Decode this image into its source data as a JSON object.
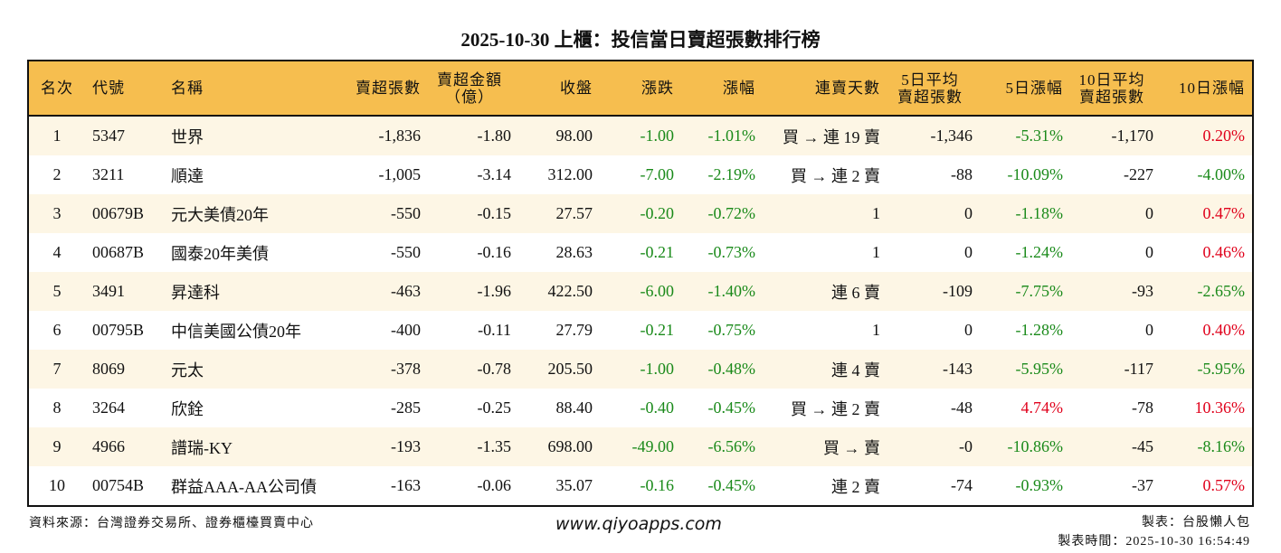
{
  "title": "2025-10-30 上櫃：投信當日賣超張數排行榜",
  "headers": [
    "名次",
    "代號",
    "名稱",
    "賣超張數",
    "賣超金額\n（億）",
    "收盤",
    "漲跌",
    "漲幅",
    "連賣天數",
    "5日平均\n賣超張數",
    "5日漲幅",
    "10日平均\n賣超張數",
    "10日漲幅"
  ],
  "colors": {
    "header_bg": "#F6BE4F",
    "row_alt_bg": "#FDF6E5",
    "down": "#1a8a1a",
    "up": "#e0001b"
  },
  "rows": [
    {
      "rank": "1",
      "code": "5347",
      "name": "世界",
      "shares": "-1,836",
      "amount": "-1.80",
      "close": "98.00",
      "chg": "-1.00",
      "pct": "-1.01%",
      "streak": "買 → 連 19 賣",
      "avg5": "-1,346",
      "pct5": "-5.31%",
      "avg10": "-1,170",
      "pct10": "0.20%"
    },
    {
      "rank": "2",
      "code": "3211",
      "name": "順達",
      "shares": "-1,005",
      "amount": "-3.14",
      "close": "312.00",
      "chg": "-7.00",
      "pct": "-2.19%",
      "streak": "買 → 連 2 賣",
      "avg5": "-88",
      "pct5": "-10.09%",
      "avg10": "-227",
      "pct10": "-4.00%"
    },
    {
      "rank": "3",
      "code": "00679B",
      "name": "元大美債20年",
      "shares": "-550",
      "amount": "-0.15",
      "close": "27.57",
      "chg": "-0.20",
      "pct": "-0.72%",
      "streak": "1",
      "avg5": "0",
      "pct5": "-1.18%",
      "avg10": "0",
      "pct10": "0.47%"
    },
    {
      "rank": "4",
      "code": "00687B",
      "name": "國泰20年美債",
      "shares": "-550",
      "amount": "-0.16",
      "close": "28.63",
      "chg": "-0.21",
      "pct": "-0.73%",
      "streak": "1",
      "avg5": "0",
      "pct5": "-1.24%",
      "avg10": "0",
      "pct10": "0.46%"
    },
    {
      "rank": "5",
      "code": "3491",
      "name": "昇達科",
      "shares": "-463",
      "amount": "-1.96",
      "close": "422.50",
      "chg": "-6.00",
      "pct": "-1.40%",
      "streak": "連 6 賣",
      "avg5": "-109",
      "pct5": "-7.75%",
      "avg10": "-93",
      "pct10": "-2.65%"
    },
    {
      "rank": "6",
      "code": "00795B",
      "name": "中信美國公債20年",
      "shares": "-400",
      "amount": "-0.11",
      "close": "27.79",
      "chg": "-0.21",
      "pct": "-0.75%",
      "streak": "1",
      "avg5": "0",
      "pct5": "-1.28%",
      "avg10": "0",
      "pct10": "0.40%"
    },
    {
      "rank": "7",
      "code": "8069",
      "name": "元太",
      "shares": "-378",
      "amount": "-0.78",
      "close": "205.50",
      "chg": "-1.00",
      "pct": "-0.48%",
      "streak": "連 4 賣",
      "avg5": "-143",
      "pct5": "-5.95%",
      "avg10": "-117",
      "pct10": "-5.95%"
    },
    {
      "rank": "8",
      "code": "3264",
      "name": "欣銓",
      "shares": "-285",
      "amount": "-0.25",
      "close": "88.40",
      "chg": "-0.40",
      "pct": "-0.45%",
      "streak": "買 → 連 2 賣",
      "avg5": "-48",
      "pct5": "4.74%",
      "avg10": "-78",
      "pct10": "10.36%"
    },
    {
      "rank": "9",
      "code": "4966",
      "name": "譜瑞-KY",
      "shares": "-193",
      "amount": "-1.35",
      "close": "698.00",
      "chg": "-49.00",
      "pct": "-6.56%",
      "streak": "買 → 賣",
      "avg5": "-0",
      "pct5": "-10.86%",
      "avg10": "-45",
      "pct10": "-8.16%"
    },
    {
      "rank": "10",
      "code": "00754B",
      "name": "群益AAA-AA公司債",
      "shares": "-163",
      "amount": "-0.06",
      "close": "35.07",
      "chg": "-0.16",
      "pct": "-0.45%",
      "streak": "連 2 賣",
      "avg5": "-74",
      "pct5": "-0.93%",
      "avg10": "-37",
      "pct10": "0.57%"
    }
  ],
  "footer": {
    "source": "資料來源：台灣證券交易所、證券櫃檯買賣中心",
    "website": "www.qiyoapps.com",
    "maker": "製表：台股懶人包",
    "time": "製表時間：2025-10-30 16:54:49"
  }
}
